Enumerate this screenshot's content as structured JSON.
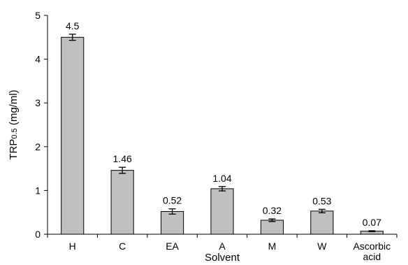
{
  "chart_data": {
    "type": "bar",
    "categories": [
      "H",
      "C",
      "EA",
      "A",
      "M",
      "W",
      [
        "Ascorbic",
        "acid"
      ]
    ],
    "values": [
      4.5,
      1.46,
      0.52,
      1.04,
      0.32,
      0.53,
      0.07
    ],
    "errors": [
      0.07,
      0.07,
      0.06,
      0.05,
      0.03,
      0.04,
      0.01
    ],
    "data_labels": [
      "4.5",
      "1.46",
      "0.52",
      "1.04",
      "0.32",
      "0.53",
      "0.07"
    ],
    "xlabel": "Solvent",
    "ylabel": {
      "main": "TRP",
      "sub": "0.5",
      "unit": " (mg/ml)"
    },
    "ylim": [
      0,
      5
    ],
    "yticks": [
      0,
      1,
      2,
      3,
      4,
      5
    ],
    "grid": false,
    "colors": {
      "bar_fill": "#c0c0c0",
      "bar_stroke": "#000000",
      "axis": "#000000"
    }
  }
}
